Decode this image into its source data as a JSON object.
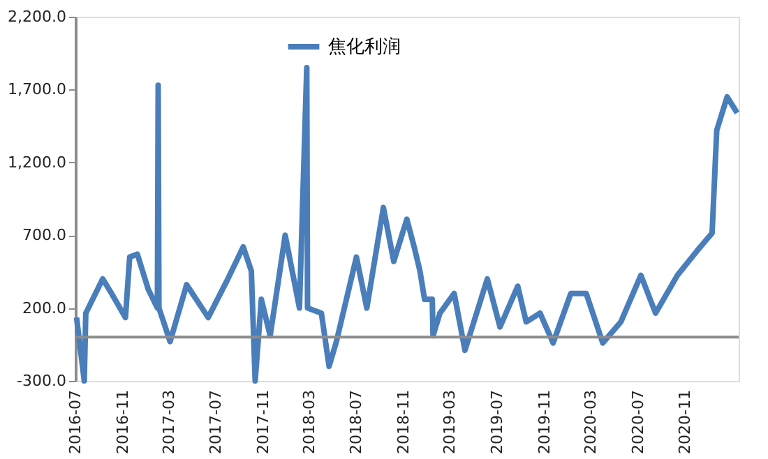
{
  "chart_data": {
    "type": "line",
    "x": [
      "2016-07-04",
      "2016-07-24",
      "2016-07-28",
      "2016-09-10",
      "2016-10-03",
      "2016-11-08",
      "2016-11-19",
      "2016-12-09",
      "2017-01-06",
      "2017-01-30",
      "2017-02-01",
      "2017-02-03",
      "2017-03-04",
      "2017-04-16",
      "2017-06-11",
      "2017-08-01",
      "2017-09-10",
      "2017-10-01",
      "2017-10-11",
      "2017-10-27",
      "2017-11-19",
      "2017-12-28",
      "2018-02-03",
      "2018-02-22",
      "2018-02-24",
      "2018-04-01",
      "2018-04-21",
      "2018-05-10",
      "2018-07-01",
      "2018-07-28",
      "2018-09-09",
      "2018-10-06",
      "2018-11-09",
      "2018-11-28",
      "2018-12-13",
      "2018-12-25",
      "2019-01-14",
      "2019-01-16",
      "2019-02-03",
      "2019-03-12",
      "2019-04-09",
      "2019-06-06",
      "2019-07-09",
      "2019-08-24",
      "2019-09-15",
      "2019-10-21",
      "2019-11-24",
      "2020-01-09",
      "2020-02-18",
      "2020-04-01",
      "2020-05-18",
      "2020-07-09",
      "2020-08-16",
      "2020-10-12",
      "2020-12-01",
      "2021-01-10",
      "2021-01-22",
      "2021-02-18",
      "2021-03-16"
    ],
    "series": [
      {
        "name": "焦化利润",
        "color": "#4a7ebb",
        "values": [
          135,
          -300,
          165,
          400,
          300,
          135,
          550,
          570,
          330,
          200,
          1730,
          200,
          -30,
          360,
          135,
          400,
          620,
          455,
          -300,
          260,
          10,
          700,
          200,
          1850,
          200,
          165,
          -200,
          -30,
          550,
          200,
          890,
          520,
          810,
          620,
          455,
          260,
          260,
          10,
          165,
          300,
          -90,
          400,
          70,
          350,
          105,
          165,
          -40,
          300,
          300,
          -40,
          105,
          425,
          165,
          425,
          590,
          715,
          1420,
          1650,
          1540
        ]
      }
    ],
    "xlim": [
      "2016-07-01",
      "2021-03-20"
    ],
    "xticks": [
      {
        "value": "2016-07",
        "label": "2016-07"
      },
      {
        "value": "2016-11",
        "label": "2016-11"
      },
      {
        "value": "2017-03",
        "label": "2017-03"
      },
      {
        "value": "2017-07",
        "label": "2017-07"
      },
      {
        "value": "2017-11",
        "label": "2017-11"
      },
      {
        "value": "2018-03",
        "label": "2018-03"
      },
      {
        "value": "2018-07",
        "label": "2018-07"
      },
      {
        "value": "2018-11",
        "label": "2018-11"
      },
      {
        "value": "2019-03",
        "label": "2019-03"
      },
      {
        "value": "2019-07",
        "label": "2019-07"
      },
      {
        "value": "2019-11",
        "label": "2019-11"
      },
      {
        "value": "2020-03",
        "label": "2020-03"
      },
      {
        "value": "2020-07",
        "label": "2020-07"
      },
      {
        "value": "2020-11",
        "label": "2020-11"
      }
    ],
    "ylim": [
      -300,
      2200
    ],
    "yticks": [
      {
        "value": -300,
        "label": "-300.0"
      },
      {
        "value": 200,
        "label": "200.0"
      },
      {
        "value": 700,
        "label": "700.0"
      },
      {
        "value": 1200,
        "label": "1,200.0"
      },
      {
        "value": 1700,
        "label": "1,700.0"
      },
      {
        "value": 2200,
        "label": "2,200.0"
      }
    ],
    "ref_lines": [
      {
        "axis": "y",
        "value": 0,
        "color": "#8c8c8c"
      }
    ],
    "grid": false,
    "legend": "top",
    "marker": "none",
    "line_style": "solid"
  }
}
